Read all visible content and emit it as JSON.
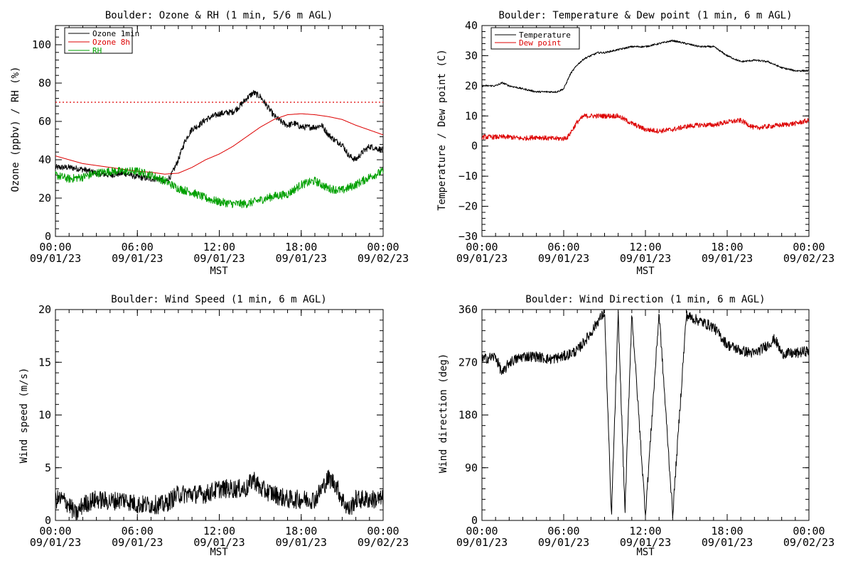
{
  "colors": {
    "ozone_1min": "#000000",
    "ozone_8h": "#dd0000",
    "rh": "#00a000",
    "temperature": "#000000",
    "dew_point": "#dd0000",
    "threshold": "#dd0000"
  },
  "chart_data": [
    {
      "id": "ozone_rh",
      "type": "line",
      "title": "Boulder: Ozone & RH (1 min, 5/6 m AGL)",
      "ylabel": "Ozone (ppbv) / RH (%)",
      "xlabel": "MST",
      "xlim": [
        0,
        24
      ],
      "ylim": [
        0,
        110
      ],
      "yticks": [
        "0",
        "20",
        "40",
        "60",
        "80",
        "100"
      ],
      "ytick_values": [
        0,
        20,
        40,
        60,
        80,
        100
      ],
      "xtick_values": [
        0,
        6,
        12,
        18,
        24
      ],
      "xtick_times": [
        "00:00",
        "06:00",
        "12:00",
        "18:00",
        "00:00"
      ],
      "xtick_dates": [
        "09/01/23",
        "09/01/23",
        "09/01/23",
        "09/01/23",
        "09/02/23"
      ],
      "legend": {
        "position": "top-left",
        "entries": [
          "Ozone 1min",
          "Ozone 8h",
          "RH"
        ]
      },
      "threshold": {
        "value": 70,
        "style": "dotted"
      },
      "series": [
        {
          "name": "Ozone 1min",
          "color": "#000000",
          "noise": 1.6,
          "x": [
            0,
            1,
            2,
            3,
            4,
            5,
            6,
            7,
            7.5,
            8,
            8.5,
            9,
            9.5,
            10,
            10.5,
            11,
            12,
            13,
            13.5,
            14,
            14.5,
            15,
            15.5,
            16,
            16.5,
            17,
            17.5,
            18,
            19,
            19.5,
            20,
            20.5,
            21,
            21.5,
            22,
            22.5,
            23,
            24
          ],
          "values": [
            36,
            36,
            35,
            33,
            32,
            33,
            31,
            30,
            30,
            28,
            32,
            40,
            50,
            56,
            58,
            61,
            64,
            65,
            68,
            72,
            75,
            73,
            68,
            63,
            60,
            58,
            59,
            57,
            57,
            58,
            53,
            50,
            48,
            42,
            40,
            44,
            47,
            45
          ]
        },
        {
          "name": "Ozone 8h",
          "color": "#dd0000",
          "noise": 0,
          "x": [
            0,
            2,
            4,
            6,
            7,
            8,
            9,
            10,
            11,
            12,
            13,
            14,
            15,
            16,
            17,
            18,
            19,
            20,
            21,
            22,
            23,
            24
          ],
          "values": [
            42,
            38,
            36,
            34,
            33.5,
            32.5,
            33,
            36,
            40,
            43,
            47,
            52,
            57,
            61,
            63.5,
            64,
            63.5,
            62.5,
            61,
            58,
            55.5,
            53
          ]
        },
        {
          "name": "RH",
          "color": "#00a000",
          "noise": 2.2,
          "x": [
            0,
            1,
            2,
            3,
            4,
            5,
            6,
            7,
            8,
            9,
            10,
            11,
            12,
            13,
            14,
            15,
            16,
            17,
            18,
            19,
            20,
            21,
            22,
            23,
            24
          ],
          "values": [
            32,
            30,
            31,
            33,
            34,
            34,
            34,
            32,
            29,
            25,
            23,
            20,
            18,
            17,
            17,
            19,
            21,
            22,
            27,
            29,
            25,
            24,
            27,
            31,
            34
          ]
        }
      ]
    },
    {
      "id": "temp_dew",
      "type": "line",
      "title": "Boulder: Temperature & Dew point (1 min, 6 m AGL)",
      "ylabel": "Temperature / Dew point (C)",
      "xlabel": "MST",
      "xlim": [
        0,
        24
      ],
      "ylim": [
        -30,
        40
      ],
      "yticks": [
        "−30",
        "−20",
        "−10",
        "0",
        "10",
        "20",
        "30",
        "40"
      ],
      "ytick_values": [
        -30,
        -20,
        -10,
        0,
        10,
        20,
        30,
        40
      ],
      "xtick_values": [
        0,
        6,
        12,
        18,
        24
      ],
      "xtick_times": [
        "00:00",
        "06:00",
        "12:00",
        "18:00",
        "00:00"
      ],
      "xtick_dates": [
        "09/01/23",
        "09/01/23",
        "09/01/23",
        "09/01/23",
        "09/02/23"
      ],
      "legend": {
        "position": "top-left",
        "entries": [
          "Temperature",
          "Dew point"
        ]
      },
      "series": [
        {
          "name": "Temperature",
          "color": "#000000",
          "noise": 0.3,
          "x": [
            0,
            1,
            1.5,
            2,
            3,
            4,
            5,
            5.5,
            6,
            6.5,
            7,
            7.5,
            8,
            8.5,
            9,
            10,
            11,
            12,
            13,
            14,
            14.5,
            15,
            16,
            17,
            18,
            19,
            20,
            21,
            22,
            23,
            24
          ],
          "values": [
            20,
            20,
            21,
            20,
            19,
            18,
            18,
            18,
            19,
            24,
            27,
            29,
            30,
            31,
            31,
            32,
            33,
            33,
            34,
            35,
            34.5,
            34,
            33,
            33,
            30,
            28,
            28.5,
            28,
            26,
            25,
            25
          ]
        },
        {
          "name": "Dew point",
          "color": "#dd0000",
          "noise": 0.8,
          "x": [
            0,
            1,
            2,
            3,
            4,
            5,
            6,
            6.3,
            7,
            7.5,
            8,
            9,
            10,
            11,
            12,
            13,
            14,
            15,
            16,
            17,
            18,
            19,
            20,
            21,
            22,
            23,
            24
          ],
          "values": [
            3,
            3,
            3,
            2.5,
            3,
            2.5,
            2.5,
            3,
            8,
            10,
            10,
            10,
            10,
            7.5,
            5.5,
            5,
            5.5,
            6.5,
            7,
            7,
            8,
            8.5,
            6,
            6.5,
            7,
            7.5,
            8.5
          ]
        }
      ]
    },
    {
      "id": "wind_speed",
      "type": "line",
      "title": "Boulder: Wind Speed (1 min, 6 m AGL)",
      "ylabel": "Wind speed (m/s)",
      "xlabel": "MST",
      "xlim": [
        0,
        24
      ],
      "ylim": [
        0,
        20
      ],
      "yticks": [
        "0",
        "5",
        "10",
        "15",
        "20"
      ],
      "ytick_values": [
        0,
        5,
        10,
        15,
        20
      ],
      "xtick_values": [
        0,
        6,
        12,
        18,
        24
      ],
      "xtick_times": [
        "00:00",
        "06:00",
        "12:00",
        "18:00",
        "00:00"
      ],
      "xtick_dates": [
        "09/01/23",
        "09/01/23",
        "09/01/23",
        "09/01/23",
        "09/02/23"
      ],
      "series": [
        {
          "name": "",
          "color": "#000000",
          "noise": 0.9,
          "x": [
            0,
            0.5,
            1,
            1.5,
            2,
            3,
            4,
            5,
            6,
            7,
            8,
            9,
            10,
            11,
            12,
            13,
            14,
            14.5,
            15,
            16,
            17,
            18,
            19,
            20,
            20.5,
            21,
            21.5,
            22,
            23,
            24
          ],
          "values": [
            2,
            2,
            1.5,
            0.5,
            1.5,
            2,
            1.8,
            2,
            1.5,
            1.5,
            1.5,
            2.5,
            2.5,
            2.5,
            3,
            3,
            3,
            4,
            3,
            2.5,
            2,
            2,
            2,
            4,
            3.5,
            2,
            1,
            2,
            2,
            2
          ]
        }
      ]
    },
    {
      "id": "wind_direction",
      "type": "line",
      "title": "Boulder: Wind Direction (1 min, 6 m AGL)",
      "ylabel": "Wind direction (deg)",
      "xlabel": "MST",
      "xlim": [
        0,
        24
      ],
      "ylim": [
        0,
        360
      ],
      "yticks": [
        "0",
        "90",
        "180",
        "270",
        "360"
      ],
      "ytick_values": [
        0,
        90,
        180,
        270,
        360
      ],
      "xtick_values": [
        0,
        6,
        12,
        18,
        24
      ],
      "xtick_times": [
        "00:00",
        "06:00",
        "12:00",
        "18:00",
        "00:00"
      ],
      "xtick_dates": [
        "09/01/23",
        "09/01/23",
        "09/01/23",
        "09/01/23",
        "09/02/23"
      ],
      "series": [
        {
          "name": "",
          "color": "#000000",
          "noise": 9,
          "wrap": true,
          "x": [
            0,
            1,
            1.5,
            2,
            3,
            4,
            5,
            6,
            7,
            8,
            8.5,
            9,
            9.5,
            10,
            10.5,
            11,
            12,
            13,
            14,
            15,
            15.5,
            16,
            17,
            18,
            19,
            20,
            21,
            21.5,
            22,
            23,
            24
          ],
          "values": [
            275,
            280,
            250,
            270,
            280,
            280,
            275,
            280,
            290,
            320,
            340,
            355,
            5,
            350,
            15,
            355,
            10,
            355,
            10,
            350,
            345,
            340,
            330,
            300,
            290,
            285,
            300,
            310,
            285,
            285,
            290
          ]
        }
      ]
    }
  ]
}
